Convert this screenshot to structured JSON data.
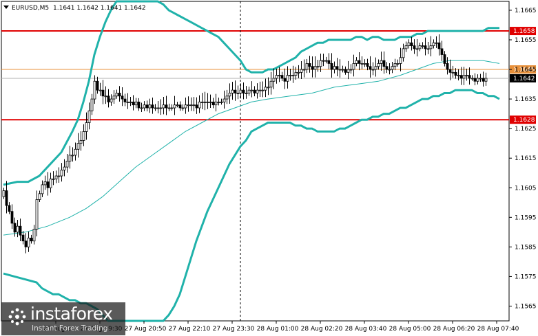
{
  "window": {
    "symbol_label": "EURUSD,M5",
    "ohlc": "1.1641 1.1642 1.1641 1.1642"
  },
  "colors": {
    "background": "#ffffff",
    "grid": "#b8b8b8",
    "candle": "#000000",
    "bollinger": "#20b2aa",
    "moving_average": "#20b2aa",
    "resistance": "#e00000",
    "support": "#e00000",
    "pivot": "#e8903a",
    "current": "#b0b0b0"
  },
  "chart_data": {
    "type": "candlestick",
    "timeframe": "M5",
    "ylim": [
      1.156,
      1.1668
    ],
    "y_ticks": [
      "1.1665",
      "1.1655",
      "1.1645",
      "1.1635",
      "1.1625",
      "1.1615",
      "1.1605",
      "1.1595",
      "1.1585",
      "1.1575",
      "1.1565"
    ],
    "x_ticks": [
      {
        "bar": 19,
        "label": "27 Aug 2"
      },
      {
        "bar": 35,
        "label": "27 Aug 19:30"
      },
      {
        "bar": 51,
        "label": "27 Aug 20:50"
      },
      {
        "bar": 67,
        "label": "27 Aug 22:10"
      },
      {
        "bar": 83,
        "label": "27 Aug 23:30"
      },
      {
        "bar": 99,
        "label": "28 Aug 01:00"
      },
      {
        "bar": 115,
        "label": "28 Aug 02:20"
      },
      {
        "bar": 131,
        "label": "28 Aug 03:40"
      },
      {
        "bar": 147,
        "label": "28 Aug 05:00"
      },
      {
        "bar": 163,
        "label": "28 Aug 06:20"
      },
      {
        "bar": 179,
        "label": "28 Aug 07:40"
      }
    ],
    "session_divider_bar": 86,
    "horizontal_levels": [
      {
        "name": "resistance",
        "value": 1.1658,
        "label": "1.1658"
      },
      {
        "name": "pivot",
        "value": 1.1645,
        "label": "1.1645"
      },
      {
        "name": "current",
        "value": 1.1642,
        "label": "1.1642"
      },
      {
        "name": "support",
        "value": 1.1628,
        "label": "1.1628"
      }
    ],
    "close": [
      1.1604,
      1.1599,
      1.1597,
      1.1593,
      1.159,
      1.1592,
      1.1589,
      1.1587,
      1.1585,
      1.1588,
      1.1587,
      1.1591,
      1.1601,
      1.1603,
      1.1606,
      1.1607,
      1.1605,
      1.1608,
      1.1608,
      1.1609,
      1.1609,
      1.1611,
      1.1612,
      1.1614,
      1.1616,
      1.1616,
      1.1618,
      1.162,
      1.1621,
      1.1624,
      1.1627,
      1.1631,
      1.1635,
      1.1641,
      1.1638,
      1.1638,
      1.1636,
      1.1636,
      1.1634,
      1.1635,
      1.1636,
      1.1637,
      1.1636,
      1.1635,
      1.1634,
      1.1634,
      1.1634,
      1.1633,
      1.1634,
      1.1632,
      1.1632,
      1.1633,
      1.1632,
      1.1633,
      1.1632,
      1.1632,
      1.1632,
      1.1632,
      1.1633,
      1.1632,
      1.1632,
      1.1632,
      1.1633,
      1.1633,
      1.1632,
      1.1632,
      1.1633,
      1.1633,
      1.1633,
      1.1633,
      1.1632,
      1.1634,
      1.1634,
      1.1634,
      1.1634,
      1.1634,
      1.1633,
      1.1634,
      1.1634,
      1.1634,
      1.1635,
      1.1636,
      1.1637,
      1.1638,
      1.1637,
      1.1637,
      1.1638,
      1.1637,
      1.1637,
      1.1638,
      1.1638,
      1.1637,
      1.1638,
      1.1638,
      1.1638,
      1.1639,
      1.1639,
      1.1641,
      1.1642,
      1.1643,
      1.1643,
      1.1642,
      1.1641,
      1.1643,
      1.1643,
      1.1643,
      1.1644,
      1.1644,
      1.1645,
      1.1645,
      1.1647,
      1.1646,
      1.1645,
      1.1646,
      1.1646,
      1.1648,
      1.1648,
      1.1648,
      1.1647,
      1.1645,
      1.1646,
      1.1645,
      1.1645,
      1.1645,
      1.1644,
      1.1645,
      1.1645,
      1.1647,
      1.1648,
      1.1647,
      1.1647,
      1.1647,
      1.1646,
      1.1645,
      1.1645,
      1.1646,
      1.1647,
      1.1648,
      1.1646,
      1.1645,
      1.1645,
      1.1646,
      1.1647,
      1.1647,
      1.1649,
      1.1652,
      1.1653,
      1.1654,
      1.1653,
      1.1652,
      1.1652,
      1.1653,
      1.1653,
      1.1652,
      1.1652,
      1.1653,
      1.1654,
      1.1654,
      1.1652,
      1.165,
      1.1647,
      1.1645,
      1.1644,
      1.1644,
      1.1643,
      1.1643,
      1.1642,
      1.1643,
      1.1643,
      1.1642,
      1.1642,
      1.1641,
      1.1642,
      1.1642,
      1.1641,
      1.1642
    ],
    "bollinger_upper": [
      [
        0,
        1.1606
      ],
      [
        5,
        1.1607
      ],
      [
        9,
        1.1607
      ],
      [
        13,
        1.1609
      ],
      [
        17,
        1.1613
      ],
      [
        21,
        1.1617
      ],
      [
        25,
        1.1624
      ],
      [
        27,
        1.1628
      ],
      [
        29,
        1.1634
      ],
      [
        31,
        1.1641
      ],
      [
        33,
        1.165
      ],
      [
        35,
        1.1656
      ],
      [
        37,
        1.1661
      ],
      [
        39,
        1.1665
      ],
      [
        41,
        1.1668
      ],
      [
        54,
        1.1668
      ],
      [
        56,
        1.1668
      ],
      [
        58,
        1.1667
      ],
      [
        60,
        1.1665
      ],
      [
        62,
        1.1664
      ],
      [
        64,
        1.1663
      ],
      [
        66,
        1.1662
      ],
      [
        68,
        1.1661
      ],
      [
        70,
        1.166
      ],
      [
        72,
        1.1659
      ],
      [
        74,
        1.1658
      ],
      [
        76,
        1.1657
      ],
      [
        78,
        1.1656
      ],
      [
        80,
        1.1654
      ],
      [
        82,
        1.1652
      ],
      [
        84,
        1.165
      ],
      [
        86,
        1.1648
      ],
      [
        88,
        1.1645
      ],
      [
        90,
        1.1644
      ],
      [
        92,
        1.1644
      ],
      [
        94,
        1.1644
      ],
      [
        96,
        1.1645
      ],
      [
        98,
        1.1645
      ],
      [
        100,
        1.1646
      ],
      [
        102,
        1.1647
      ],
      [
        104,
        1.1648
      ],
      [
        106,
        1.1649
      ],
      [
        108,
        1.1651
      ],
      [
        110,
        1.1652
      ],
      [
        112,
        1.1653
      ],
      [
        114,
        1.1654
      ],
      [
        116,
        1.1654
      ],
      [
        118,
        1.1655
      ],
      [
        120,
        1.1655
      ],
      [
        122,
        1.1655
      ],
      [
        124,
        1.1655
      ],
      [
        126,
        1.1655
      ],
      [
        128,
        1.1656
      ],
      [
        130,
        1.1656
      ],
      [
        132,
        1.1655
      ],
      [
        134,
        1.1656
      ],
      [
        136,
        1.1656
      ],
      [
        138,
        1.1655
      ],
      [
        140,
        1.1655
      ],
      [
        142,
        1.1655
      ],
      [
        144,
        1.1656
      ],
      [
        146,
        1.1656
      ],
      [
        148,
        1.1656
      ],
      [
        150,
        1.1657
      ],
      [
        152,
        1.1657
      ],
      [
        154,
        1.1658
      ],
      [
        156,
        1.1658
      ],
      [
        158,
        1.1658
      ],
      [
        160,
        1.1658
      ],
      [
        162,
        1.1658
      ],
      [
        164,
        1.1658
      ],
      [
        166,
        1.1658
      ],
      [
        168,
        1.1658
      ],
      [
        170,
        1.1658
      ],
      [
        172,
        1.1658
      ],
      [
        174,
        1.1658
      ],
      [
        176,
        1.1659
      ],
      [
        178,
        1.1659
      ],
      [
        180,
        1.1659
      ]
    ],
    "bollinger_lower": [
      [
        0,
        1.1576
      ],
      [
        4,
        1.1575
      ],
      [
        8,
        1.1574
      ],
      [
        12,
        1.1573
      ],
      [
        14,
        1.1571
      ],
      [
        16,
        1.157
      ],
      [
        18,
        1.1569
      ],
      [
        20,
        1.1569
      ],
      [
        22,
        1.1568
      ],
      [
        24,
        1.1567
      ],
      [
        26,
        1.1567
      ],
      [
        28,
        1.1566
      ],
      [
        30,
        1.1566
      ],
      [
        32,
        1.1565
      ],
      [
        34,
        1.1564
      ],
      [
        36,
        1.1562
      ],
      [
        38,
        1.156
      ],
      [
        58,
        1.156
      ],
      [
        60,
        1.1562
      ],
      [
        62,
        1.1565
      ],
      [
        64,
        1.1569
      ],
      [
        66,
        1.1575
      ],
      [
        68,
        1.1581
      ],
      [
        70,
        1.1587
      ],
      [
        72,
        1.1592
      ],
      [
        74,
        1.1597
      ],
      [
        76,
        1.1601
      ],
      [
        78,
        1.1605
      ],
      [
        80,
        1.1609
      ],
      [
        82,
        1.1613
      ],
      [
        84,
        1.1616
      ],
      [
        86,
        1.1619
      ],
      [
        88,
        1.1621
      ],
      [
        90,
        1.1624
      ],
      [
        92,
        1.1625
      ],
      [
        94,
        1.1626
      ],
      [
        96,
        1.1627
      ],
      [
        98,
        1.1627
      ],
      [
        100,
        1.1627
      ],
      [
        102,
        1.1627
      ],
      [
        104,
        1.1627
      ],
      [
        106,
        1.1626
      ],
      [
        108,
        1.1626
      ],
      [
        110,
        1.1625
      ],
      [
        112,
        1.1625
      ],
      [
        114,
        1.1624
      ],
      [
        116,
        1.1624
      ],
      [
        118,
        1.1624
      ],
      [
        120,
        1.1624
      ],
      [
        122,
        1.1625
      ],
      [
        124,
        1.1625
      ],
      [
        126,
        1.1626
      ],
      [
        128,
        1.1627
      ],
      [
        130,
        1.1628
      ],
      [
        132,
        1.1628
      ],
      [
        134,
        1.1629
      ],
      [
        136,
        1.1629
      ],
      [
        138,
        1.163
      ],
      [
        140,
        1.163
      ],
      [
        142,
        1.1631
      ],
      [
        144,
        1.1632
      ],
      [
        146,
        1.1632
      ],
      [
        148,
        1.1633
      ],
      [
        150,
        1.1634
      ],
      [
        152,
        1.1635
      ],
      [
        154,
        1.1635
      ],
      [
        156,
        1.1636
      ],
      [
        158,
        1.1636
      ],
      [
        160,
        1.1637
      ],
      [
        162,
        1.1637
      ],
      [
        164,
        1.1638
      ],
      [
        166,
        1.1638
      ],
      [
        168,
        1.1638
      ],
      [
        170,
        1.1638
      ],
      [
        172,
        1.1637
      ],
      [
        174,
        1.1637
      ],
      [
        176,
        1.1636
      ],
      [
        178,
        1.1636
      ],
      [
        180,
        1.1635
      ]
    ],
    "moving_average": [
      [
        0,
        1.1589
      ],
      [
        8,
        1.159
      ],
      [
        16,
        1.1592
      ],
      [
        24,
        1.1595
      ],
      [
        30,
        1.1598
      ],
      [
        36,
        1.1602
      ],
      [
        42,
        1.1607
      ],
      [
        48,
        1.1612
      ],
      [
        54,
        1.1616
      ],
      [
        60,
        1.162
      ],
      [
        66,
        1.1624
      ],
      [
        72,
        1.1627
      ],
      [
        78,
        1.163
      ],
      [
        84,
        1.1632
      ],
      [
        90,
        1.1634
      ],
      [
        96,
        1.1635
      ],
      [
        104,
        1.1636
      ],
      [
        112,
        1.1637
      ],
      [
        120,
        1.1639
      ],
      [
        128,
        1.164
      ],
      [
        136,
        1.1641
      ],
      [
        144,
        1.1643
      ],
      [
        150,
        1.1645
      ],
      [
        156,
        1.1647
      ],
      [
        162,
        1.1648
      ],
      [
        168,
        1.1648
      ],
      [
        174,
        1.1648
      ],
      [
        180,
        1.1647
      ]
    ]
  },
  "watermark": {
    "brand": "instaforex",
    "tagline": "Instant Forex Trading"
  }
}
